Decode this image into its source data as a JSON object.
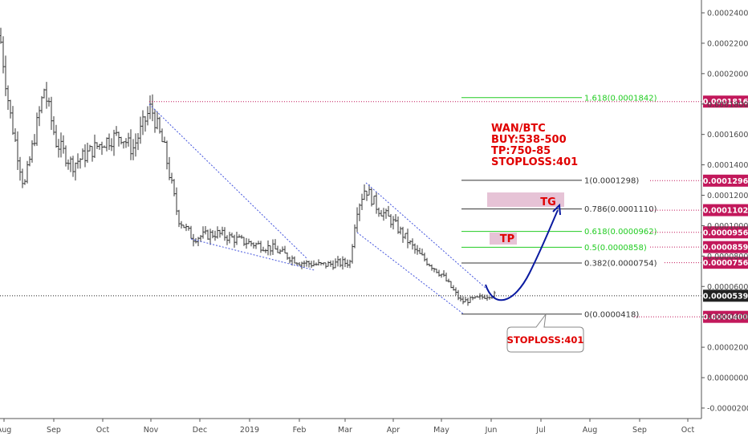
{
  "chart_data": {
    "type": "candlestick",
    "symbol": "",
    "x_axis": {
      "labels": [
        "Aug",
        "Sep",
        "Oct",
        "Nov",
        "Dec",
        "2019",
        "Feb",
        "Mar",
        "Apr",
        "May",
        "Jun",
        "Jul",
        "Aug",
        "Sep",
        "Oct"
      ]
    },
    "y_axis": {
      "range": [
        -2e-05,
        0.00024
      ],
      "tick_labels": [
        "0.0002400",
        "0.0002200",
        "0.0002000",
        "0.0001800",
        "0.0001600",
        "0.0001400",
        "0.0001200",
        "0.0001000",
        "0.0000800",
        "0.0000600",
        "0.0000400",
        "0.0000200",
        "0.0000000",
        "-0.0000200"
      ],
      "tick_values": [
        0.00024,
        0.00022,
        0.0002,
        0.00018,
        0.00016,
        0.00014,
        0.00012,
        0.0001,
        8e-05,
        6e-05,
        4e-05,
        2e-05,
        0,
        -2e-05
      ]
    },
    "price_anchors": [
      {
        "month": "Aug",
        "price": 0.000225
      },
      {
        "month": "Sep",
        "price": 0.000195
      },
      {
        "month": "Oct",
        "price": 0.000155
      },
      {
        "month": "Nov",
        "price": 0.000178
      },
      {
        "month": "Dec",
        "price": 9.5e-05
      },
      {
        "month": "2019",
        "price": 8.5e-05
      },
      {
        "month": "Feb",
        "price": 7.5e-05
      },
      {
        "month": "Mar",
        "price": 7.4e-05
      },
      {
        "month": "Mar",
        "price": 0.000125
      },
      {
        "month": "Apr",
        "price": 9.5e-05
      },
      {
        "month": "May",
        "price": 5.2e-05
      },
      {
        "month": "Jun",
        "price": 5.2e-05
      }
    ],
    "fib_levels": [
      {
        "label": "1.618(0.0001842)",
        "value": 0.0001842,
        "color": "#22cc22"
      },
      {
        "label": "1(0.0001298)",
        "value": 0.0001298,
        "color": "#333333"
      },
      {
        "label": "0.786(0.0001110)",
        "value": 0.000111,
        "color": "#333333"
      },
      {
        "label": "0.618(0.0000962)",
        "value": 9.62e-05,
        "color": "#22cc22"
      },
      {
        "label": "0.5(0.0000858)",
        "value": 8.58e-05,
        "color": "#22cc22"
      },
      {
        "label": "0.382(0.0000754)",
        "value": 7.54e-05,
        "color": "#333333"
      },
      {
        "label": "0(0.0000418)",
        "value": 4.18e-05,
        "color": "#333333"
      }
    ],
    "price_tags": [
      {
        "label": "0.0001816",
        "value": 0.0001816,
        "color": "#c2185b",
        "dotted_line": true
      },
      {
        "label": "0.0001296",
        "value": 0.0001296,
        "color": "#c2185b",
        "dotted_line": true
      },
      {
        "label": "0.0001102",
        "value": 0.0001102,
        "color": "#c2185b",
        "dotted_line": true
      },
      {
        "label": "0.0000956",
        "value": 9.56e-05,
        "color": "#c2185b",
        "dotted_line": true
      },
      {
        "label": "0.0000859",
        "value": 8.59e-05,
        "color": "#c2185b",
        "dotted_line": true
      },
      {
        "label": "0.0000756",
        "value": 7.56e-05,
        "color": "#c2185b",
        "dotted_line": true
      },
      {
        "label": "0.0000539",
        "value": 5.39e-05,
        "color": "#222222",
        "dotted_line": true,
        "current": true
      },
      {
        "label": "0.0000400",
        "value": 4e-05,
        "color": "#c2185b",
        "dotted_line": true
      }
    ],
    "annotations": {
      "note_lines": [
        "WAN/BTC",
        "BUY:538-500",
        "TP:750-85",
        "STOPLOSS:401"
      ],
      "tg_box": "TG",
      "tp_box": "TP",
      "stoploss_callout": "STOPLOSS:401"
    },
    "colors": {
      "candles": "#333333",
      "channel": "#4455dd",
      "arrow": "#0a1aa0",
      "zones": "#e2b8cf"
    }
  }
}
